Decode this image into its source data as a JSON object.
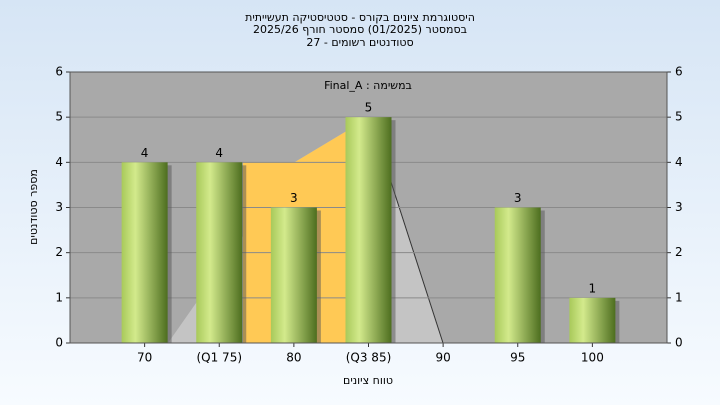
{
  "chart_data": {
    "type": "bar",
    "title": "היסטוגרמת ציונים בקורס - סטטיסטיקה תעשייתית",
    "subtitle": "בסמסטר  (01/2025)  סמסטר חורף 2025/26",
    "subtitle2": "סטודנטים רשומים - 27",
    "annotation": "Final_A : במשימה",
    "x_label": "טווח ציונים",
    "y_label": "מספר סטודנטים",
    "categories": [
      "70",
      "(Q1 75)",
      "80",
      "(Q3 85)",
      "90",
      "95",
      "100"
    ],
    "values": [
      4,
      4,
      3,
      5,
      0,
      3,
      1
    ],
    "ylim": [
      0,
      6
    ],
    "yticks": [
      0,
      1,
      2,
      3,
      4,
      5,
      6
    ],
    "grid": true
  }
}
